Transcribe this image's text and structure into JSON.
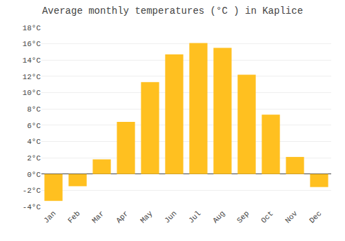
{
  "chart_data": {
    "type": "bar",
    "title": "Average monthly temperatures (°C ) in Kaplice",
    "categories": [
      "Jan",
      "Feb",
      "Mar",
      "Apr",
      "May",
      "Jun",
      "Jul",
      "Aug",
      "Sep",
      "Oct",
      "Nov",
      "Dec"
    ],
    "values": [
      -3.3,
      -1.5,
      1.8,
      6.4,
      11.3,
      14.7,
      16.1,
      15.5,
      12.2,
      7.3,
      2.1,
      -1.6
    ],
    "color": "#FFC020",
    "ylim": [
      -4,
      18
    ],
    "yticks": [
      {
        "value": -4,
        "label": "-4°C"
      },
      {
        "value": -2,
        "label": "-2°C"
      },
      {
        "value": 0,
        "label": "0°C"
      },
      {
        "value": 2,
        "label": "2°C"
      },
      {
        "value": 4,
        "label": "4°C"
      },
      {
        "value": 6,
        "label": "6°C"
      },
      {
        "value": 8,
        "label": "8°C"
      },
      {
        "value": 10,
        "label": "10°C"
      },
      {
        "value": 12,
        "label": "12°C"
      },
      {
        "value": 14,
        "label": "14°C"
      },
      {
        "value": 16,
        "label": "16°C"
      },
      {
        "value": 18,
        "label": "18°C"
      }
    ],
    "grid": true
  }
}
